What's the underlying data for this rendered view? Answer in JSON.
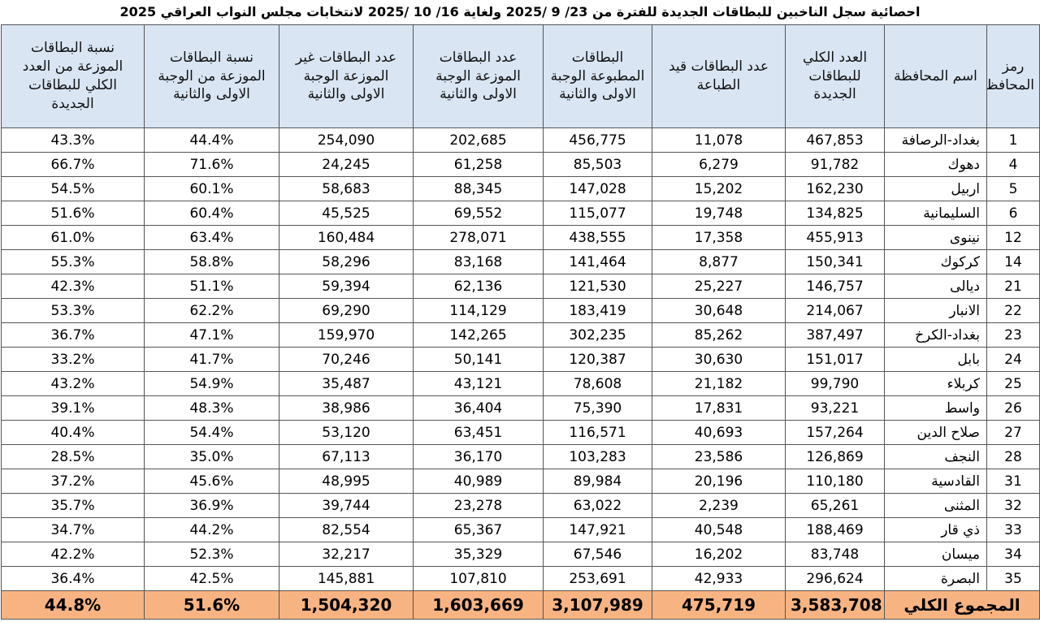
{
  "title": "احصائية سجل الناخبين للبطاقات الجديدة للفترة من 23/ 9 /2025 ولغاية 16/ 10 /2025 لانتخابات مجلس النواب العراقي 2025",
  "headers": {
    "code": "رمز المحافظة",
    "governorate": "اسم المحافظة",
    "total_cards": "العدد الكلي للبطاقات الجديدة",
    "in_printing": "عدد البطاقات قيد الطباعة",
    "printed": "البطاقات المطبوعة الوجبة الاولى والثانية",
    "distributed": "عدد البطاقات الموزعة الوجبة الاولى والثانية",
    "undistributed": "عدد البطاقات غير الموزعة الوجبة الاولى والثانية",
    "pct_batch": "نسبة البطاقات الموزعة من الوجبة الاولى والثانية",
    "pct_total": "نسبة البطاقات الموزعة من العدد الكلي للبطاقات الجديدة"
  },
  "rows": [
    {
      "code": "1",
      "gov": "بغداد-الرصافة",
      "total": "467,853",
      "printing": "11,078",
      "printed": "456,775",
      "distributed": "202,685",
      "undistributed": "254,090",
      "pct_batch": "44.4%",
      "pct_total": "43.3%"
    },
    {
      "code": "4",
      "gov": "دهوك",
      "total": "91,782",
      "printing": "6,279",
      "printed": "85,503",
      "distributed": "61,258",
      "undistributed": "24,245",
      "pct_batch": "71.6%",
      "pct_total": "66.7%"
    },
    {
      "code": "5",
      "gov": "اربيل",
      "total": "162,230",
      "printing": "15,202",
      "printed": "147,028",
      "distributed": "88,345",
      "undistributed": "58,683",
      "pct_batch": "60.1%",
      "pct_total": "54.5%"
    },
    {
      "code": "6",
      "gov": "السليمانية",
      "total": "134,825",
      "printing": "19,748",
      "printed": "115,077",
      "distributed": "69,552",
      "undistributed": "45,525",
      "pct_batch": "60.4%",
      "pct_total": "51.6%"
    },
    {
      "code": "12",
      "gov": "نينوى",
      "total": "455,913",
      "printing": "17,358",
      "printed": "438,555",
      "distributed": "278,071",
      "undistributed": "160,484",
      "pct_batch": "63.4%",
      "pct_total": "61.0%"
    },
    {
      "code": "14",
      "gov": "كركوك",
      "total": "150,341",
      "printing": "8,877",
      "printed": "141,464",
      "distributed": "83,168",
      "undistributed": "58,296",
      "pct_batch": "58.8%",
      "pct_total": "55.3%"
    },
    {
      "code": "21",
      "gov": "ديالى",
      "total": "146,757",
      "printing": "25,227",
      "printed": "121,530",
      "distributed": "62,136",
      "undistributed": "59,394",
      "pct_batch": "51.1%",
      "pct_total": "42.3%"
    },
    {
      "code": "22",
      "gov": "الانبار",
      "total": "214,067",
      "printing": "30,648",
      "printed": "183,419",
      "distributed": "114,129",
      "undistributed": "69,290",
      "pct_batch": "62.2%",
      "pct_total": "53.3%"
    },
    {
      "code": "23",
      "gov": "بغداد-الكرخ",
      "total": "387,497",
      "printing": "85,262",
      "printed": "302,235",
      "distributed": "142,265",
      "undistributed": "159,970",
      "pct_batch": "47.1%",
      "pct_total": "36.7%"
    },
    {
      "code": "24",
      "gov": "بابل",
      "total": "151,017",
      "printing": "30,630",
      "printed": "120,387",
      "distributed": "50,141",
      "undistributed": "70,246",
      "pct_batch": "41.7%",
      "pct_total": "33.2%"
    },
    {
      "code": "25",
      "gov": "كربلاء",
      "total": "99,790",
      "printing": "21,182",
      "printed": "78,608",
      "distributed": "43,121",
      "undistributed": "35,487",
      "pct_batch": "54.9%",
      "pct_total": "43.2%"
    },
    {
      "code": "26",
      "gov": "واسط",
      "total": "93,221",
      "printing": "17,831",
      "printed": "75,390",
      "distributed": "36,404",
      "undistributed": "38,986",
      "pct_batch": "48.3%",
      "pct_total": "39.1%"
    },
    {
      "code": "27",
      "gov": "صلاح الدين",
      "total": "157,264",
      "printing": "40,693",
      "printed": "116,571",
      "distributed": "63,451",
      "undistributed": "53,120",
      "pct_batch": "54.4%",
      "pct_total": "40.4%"
    },
    {
      "code": "28",
      "gov": "النجف",
      "total": "126,869",
      "printing": "23,586",
      "printed": "103,283",
      "distributed": "36,170",
      "undistributed": "67,113",
      "pct_batch": "35.0%",
      "pct_total": "28.5%"
    },
    {
      "code": "31",
      "gov": "القادسية",
      "total": "110,180",
      "printing": "20,196",
      "printed": "89,984",
      "distributed": "40,989",
      "undistributed": "48,995",
      "pct_batch": "45.6%",
      "pct_total": "37.2%"
    },
    {
      "code": "32",
      "gov": "المثنى",
      "total": "65,261",
      "printing": "2,239",
      "printed": "63,022",
      "distributed": "23,278",
      "undistributed": "39,744",
      "pct_batch": "36.9%",
      "pct_total": "35.7%"
    },
    {
      "code": "33",
      "gov": "ذي قار",
      "total": "188,469",
      "printing": "40,548",
      "printed": "147,921",
      "distributed": "65,367",
      "undistributed": "82,554",
      "pct_batch": "44.2%",
      "pct_total": "34.7%"
    },
    {
      "code": "34",
      "gov": "ميسان",
      "total": "83,748",
      "printing": "16,202",
      "printed": "67,546",
      "distributed": "35,329",
      "undistributed": "32,217",
      "pct_batch": "52.3%",
      "pct_total": "42.2%"
    },
    {
      "code": "35",
      "gov": "البصرة",
      "total": "296,624",
      "printing": "42,933",
      "printed": "253,691",
      "distributed": "107,810",
      "undistributed": "145,881",
      "pct_batch": "42.5%",
      "pct_total": "36.4%"
    }
  ],
  "totals": {
    "label": "المجموع الكلي",
    "total": "3,583,708",
    "printing": "475,719",
    "printed": "3,107,989",
    "distributed": "1,603,669",
    "undistributed": "1,504,320",
    "pct_batch": "51.6%",
    "pct_total": "44.8%"
  }
}
